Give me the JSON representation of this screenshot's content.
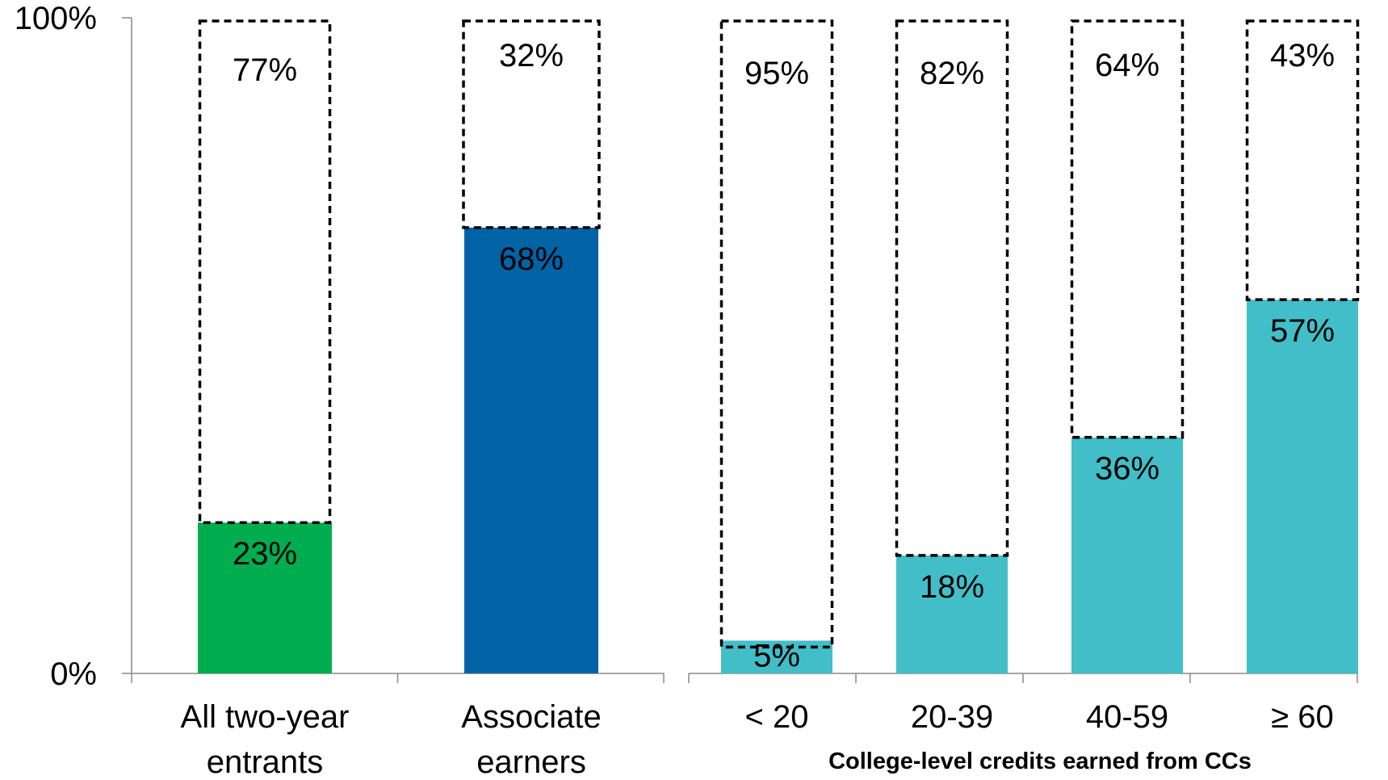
{
  "chart_data": {
    "type": "bar",
    "stacked": true,
    "ylim": [
      0,
      100
    ],
    "y_tick_labels": [
      "0%",
      "100%"
    ],
    "xlabel": "College-level credits earned from CCs",
    "groups": [
      {
        "categories": [
          {
            "label_lines": [
              "All two-year",
              "entrants"
            ],
            "value": 23,
            "remainder": 77,
            "value_label": "23%",
            "remainder_label": "77%",
            "color": "#00ad4e"
          },
          {
            "label_lines": [
              "Associate",
              "earners"
            ],
            "value": 68,
            "remainder": 32,
            "value_label": "68%",
            "remainder_label": "32%",
            "color": "#0063a6"
          }
        ]
      },
      {
        "categories": [
          {
            "label_lines": [
              "< 20"
            ],
            "value": 5,
            "remainder": 95,
            "value_label": "5%",
            "remainder_label": "95%",
            "color": "#42bec8"
          },
          {
            "label_lines": [
              "20-39"
            ],
            "value": 18,
            "remainder": 82,
            "value_label": "18%",
            "remainder_label": "82%",
            "color": "#42bec8"
          },
          {
            "label_lines": [
              "40-59"
            ],
            "value": 36,
            "remainder": 64,
            "value_label": "36%",
            "remainder_label": "64%",
            "color": "#42bec8"
          },
          {
            "label_lines": [
              "≥ 60"
            ],
            "value": 57,
            "remainder": 43,
            "value_label": "57%",
            "remainder_label": "43%",
            "color": "#42bec8"
          }
        ]
      }
    ]
  }
}
